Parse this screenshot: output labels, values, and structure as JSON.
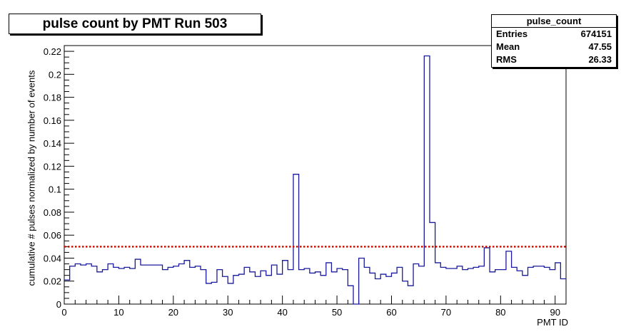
{
  "chart_data": {
    "type": "histogram",
    "title": "pulse count by PMT Run 503",
    "xlabel": "PMT ID",
    "ylabel": "cumulative # pulses normalized by number of events",
    "xlim": [
      0,
      92
    ],
    "ylim": [
      0,
      0.225
    ],
    "x_ticks": [
      "0",
      "10",
      "20",
      "30",
      "40",
      "50",
      "60",
      "70",
      "80",
      "90"
    ],
    "y_ticks": [
      "0",
      "0.02",
      "0.04",
      "0.06",
      "0.08",
      "0.1",
      "0.12",
      "0.14",
      "0.16",
      "0.18",
      "0.2",
      "0.22"
    ],
    "bin_width": 1,
    "values": [
      0.021,
      0.033,
      0.035,
      0.034,
      0.035,
      0.033,
      0.028,
      0.03,
      0.035,
      0.032,
      0.031,
      0.032,
      0.031,
      0.039,
      0.034,
      0.034,
      0.034,
      0.034,
      0.03,
      0.032,
      0.033,
      0.035,
      0.038,
      0.032,
      0.033,
      0.03,
      0.018,
      0.019,
      0.03,
      0.024,
      0.018,
      0.025,
      0.026,
      0.032,
      0.028,
      0.024,
      0.029,
      0.025,
      0.034,
      0.026,
      0.038,
      0.03,
      0.113,
      0.03,
      0.031,
      0.027,
      0.028,
      0.025,
      0.036,
      0.028,
      0.031,
      0.03,
      0.016,
      0.0,
      0.04,
      0.032,
      0.027,
      0.022,
      0.026,
      0.024,
      0.027,
      0.032,
      0.02,
      0.016,
      0.035,
      0.033,
      0.216,
      0.071,
      0.036,
      0.032,
      0.031,
      0.031,
      0.033,
      0.03,
      0.031,
      0.032,
      0.033,
      0.049,
      0.028,
      0.03,
      0.03,
      0.046,
      0.032,
      0.029,
      0.025,
      0.032,
      0.033,
      0.033,
      0.032,
      0.03,
      0.036,
      0.022
    ],
    "reference_line": {
      "y": 0.05,
      "color": "#cc1100",
      "style": "dotted"
    },
    "line_color": "#1a1a9c",
    "grid": false,
    "legend": "none"
  },
  "stats": {
    "name": "pulse_count",
    "rows": [
      {
        "label": "Entries",
        "value": "674151"
      },
      {
        "label": "Mean",
        "value": "47.55"
      },
      {
        "label": "RMS",
        "value": "26.33"
      }
    ]
  }
}
